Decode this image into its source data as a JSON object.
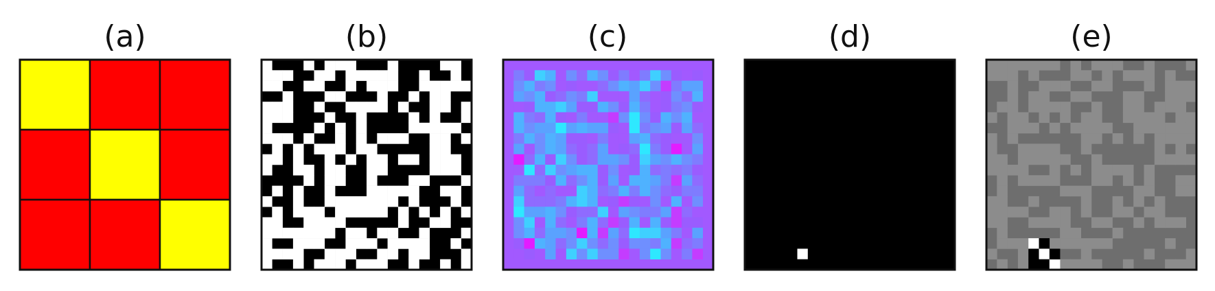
{
  "panels": [
    {
      "id": "a",
      "label": "(a)"
    },
    {
      "id": "b",
      "label": "(b)"
    },
    {
      "id": "c",
      "label": "(c)"
    },
    {
      "id": "d",
      "label": "(d)"
    },
    {
      "id": "e",
      "label": "(e)"
    }
  ],
  "panel_a": {
    "rows": 3,
    "cols": 3,
    "colors": {
      "on": "#ffff00",
      "off": "#ff0000",
      "grid": "#111111"
    },
    "cells": [
      [
        1,
        0,
        0
      ],
      [
        0,
        1,
        0
      ],
      [
        0,
        0,
        1
      ]
    ]
  },
  "panel_b": {
    "rows": 20,
    "cols": 20,
    "colors": {
      "on": "#ffffff",
      "off": "#000000"
    },
    "seed": 7
  },
  "panel_c": {
    "rows": 20,
    "cols": 20,
    "palette": [
      "#a259ff",
      "#9a5cff",
      "#8f6bff",
      "#7f7cff",
      "#6f8fff",
      "#5aa2ff",
      "#4fb2ff",
      "#3fd0ff",
      "#c43cff",
      "#e21cff",
      "#2ee8ff"
    ],
    "background": "#a259ff",
    "seed": 13
  },
  "panel_d": {
    "rows": 20,
    "cols": 20,
    "colors": {
      "background": "#000000",
      "marker": "#ffffff"
    },
    "marker_cells": [
      [
        18,
        5
      ]
    ]
  },
  "panel_e": {
    "rows": 20,
    "cols": 20,
    "colors": {
      "light": "#8c8c8c",
      "dark": "#6e6e6e",
      "white": "#ffffff",
      "black": "#000000"
    },
    "seed": 21,
    "highlight_cells": [
      {
        "r": 17,
        "c": 4,
        "v": "white"
      },
      {
        "r": 17,
        "c": 5,
        "v": "black"
      },
      {
        "r": 18,
        "c": 4,
        "v": "black"
      },
      {
        "r": 18,
        "c": 5,
        "v": "white"
      },
      {
        "r": 19,
        "c": 4,
        "v": "black"
      },
      {
        "r": 19,
        "c": 5,
        "v": "black"
      },
      {
        "r": 19,
        "c": 6,
        "v": "white"
      },
      {
        "r": 18,
        "c": 6,
        "v": "black"
      }
    ]
  }
}
